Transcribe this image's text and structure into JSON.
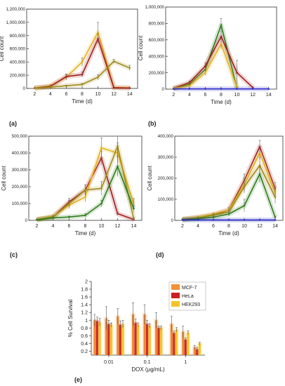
{
  "chart_data": [
    {
      "type": "line",
      "panel_label": "(a)",
      "xlabel": "Time (d)",
      "ylabel": "Cell count",
      "x": [
        2,
        4,
        6,
        8,
        10,
        12,
        14
      ],
      "xticks": [
        "2",
        "4",
        "6",
        "8",
        "10",
        "12",
        "14"
      ],
      "yticks": [
        "0",
        "200,000",
        "400,000",
        "600,000",
        "800,000",
        "1,000,000",
        "1,200,000"
      ],
      "ylim": [
        0,
        1200000
      ],
      "series": [
        {
          "color": "#e3b21e",
          "values": [
            5000,
            40000,
            170000,
            400000,
            850000,
            15000,
            10000
          ],
          "err": [
            3000,
            15000,
            40000,
            60000,
            150000,
            5000,
            5000
          ]
        },
        {
          "color": "#a11d1d",
          "values": [
            5000,
            30000,
            180000,
            210000,
            750000,
            10000,
            5000
          ],
          "err": [
            3000,
            10000,
            40000,
            40000,
            80000,
            5000,
            3000
          ]
        },
        {
          "color": "#a08a19",
          "values": [
            5000,
            20000,
            40000,
            60000,
            170000,
            410000,
            310000
          ],
          "err": [
            3000,
            5000,
            10000,
            15000,
            40000,
            30000,
            40000
          ]
        }
      ]
    },
    {
      "type": "line",
      "panel_label": "(b)",
      "xlabel": "Time (d)",
      "ylabel": "Cell count",
      "x": [
        2,
        4,
        6,
        8,
        10,
        12,
        14
      ],
      "xticks": [
        "2",
        "4",
        "6",
        "8",
        "10",
        "12",
        "14"
      ],
      "yticks": [
        "0",
        "200,000",
        "400,000",
        "600,000",
        "800,000",
        "1,000,000"
      ],
      "ylim": [
        0,
        1000000
      ],
      "series": [
        {
          "color": "#2e7d1a",
          "values": [
            10000,
            60000,
            240000,
            780000,
            10000,
            null,
            null
          ],
          "err": [
            3000,
            20000,
            40000,
            80000,
            5000,
            null,
            null
          ]
        },
        {
          "color": "#a11d1d",
          "values": [
            10000,
            80000,
            280000,
            640000,
            200000,
            20000,
            null
          ],
          "err": [
            3000,
            20000,
            40000,
            60000,
            150000,
            5000,
            null
          ]
        },
        {
          "color": "#e3b21e",
          "values": [
            10000,
            40000,
            200000,
            550000,
            20000,
            null,
            null
          ],
          "err": [
            3000,
            10000,
            30000,
            60000,
            5000,
            null,
            null
          ]
        },
        {
          "color": "#2a2ac8",
          "values": [
            2000,
            3000,
            3000,
            3000,
            3000,
            3000,
            3000
          ],
          "err": [
            0,
            0,
            0,
            0,
            0,
            0,
            0
          ]
        }
      ]
    },
    {
      "type": "line",
      "panel_label": "(c)",
      "xlabel": "Time (d)",
      "ylabel": "Cell count",
      "x": [
        2,
        4,
        6,
        8,
        10,
        12,
        14
      ],
      "xticks": [
        "2",
        "4",
        "6",
        "8",
        "10",
        "12",
        "14"
      ],
      "yticks": [
        "0",
        "100,000",
        "200,000",
        "300,000",
        "400,000",
        "500,000"
      ],
      "ylim": [
        0,
        500000
      ],
      "series": [
        {
          "color": "#a11d1d",
          "values": [
            5000,
            20000,
            110000,
            180000,
            370000,
            40000,
            5000
          ],
          "err": [
            2000,
            5000,
            20000,
            30000,
            40000,
            10000,
            3000
          ]
        },
        {
          "color": "#e3b21e",
          "values": [
            5000,
            25000,
            90000,
            140000,
            430000,
            400000,
            100000
          ],
          "err": [
            2000,
            5000,
            20000,
            30000,
            60000,
            60000,
            30000
          ]
        },
        {
          "color": "#a08a19",
          "values": [
            5000,
            20000,
            100000,
            180000,
            190000,
            440000,
            10000
          ],
          "err": [
            2000,
            5000,
            20000,
            30000,
            40000,
            60000,
            5000
          ]
        },
        {
          "color": "#2e7d1a",
          "values": [
            3000,
            15000,
            20000,
            30000,
            100000,
            320000,
            70000
          ],
          "err": [
            1000,
            3000,
            5000,
            10000,
            20000,
            60000,
            20000
          ]
        }
      ]
    },
    {
      "type": "line",
      "panel_label": "(d)",
      "xlabel": "Time (d)",
      "ylabel": "Cell count",
      "x": [
        2,
        4,
        6,
        8,
        10,
        12,
        14
      ],
      "xticks": [
        "2",
        "4",
        "6",
        "8",
        "10",
        "12",
        "14"
      ],
      "yticks": [
        "0",
        "100,000",
        "200,000",
        "300,000",
        "400,000"
      ],
      "ylim": [
        0,
        400000
      ],
      "series": [
        {
          "color": "#a11d1d",
          "values": [
            5000,
            15000,
            25000,
            50000,
            190000,
            350000,
            150000
          ],
          "err": [
            2000,
            3000,
            5000,
            10000,
            30000,
            30000,
            30000
          ]
        },
        {
          "color": "#e3b21e",
          "values": [
            5000,
            15000,
            30000,
            50000,
            170000,
            320000,
            130000
          ],
          "err": [
            2000,
            3000,
            5000,
            10000,
            30000,
            30000,
            30000
          ]
        },
        {
          "color": "#a08a19",
          "values": [
            5000,
            10000,
            25000,
            40000,
            160000,
            260000,
            110000
          ],
          "err": [
            2000,
            3000,
            5000,
            10000,
            30000,
            40000,
            30000
          ]
        },
        {
          "color": "#2e7d1a",
          "values": [
            3000,
            8000,
            15000,
            30000,
            70000,
            220000,
            15000
          ],
          "err": [
            1000,
            2000,
            5000,
            10000,
            30000,
            40000,
            5000
          ]
        },
        {
          "color": "#2a2ac8",
          "values": [
            2000,
            2000,
            2000,
            2000,
            2000,
            2000,
            2000
          ],
          "err": [
            0,
            0,
            0,
            0,
            0,
            0,
            0
          ]
        }
      ]
    },
    {
      "type": "bar",
      "panel_label": "(e)",
      "xlabel": "DOX (μg/mL)",
      "ylabel": "% Cell Survival",
      "xscale": "log",
      "xticks": [
        "0.01",
        "0.1",
        "1"
      ],
      "xtick_values": [
        0.01,
        0.1,
        1
      ],
      "yticks": [
        "0.2",
        "0.4",
        "0.6",
        "0.8",
        "1",
        "1.2",
        "1.4",
        "1.6",
        "1.8",
        "2"
      ],
      "ylim": [
        0.1,
        2.0
      ],
      "legend": "top-right",
      "doses": [
        0.005,
        0.01,
        0.02,
        0.05,
        0.1,
        0.2,
        0.5,
        1,
        2
      ],
      "series": [
        {
          "name": "MCF-7",
          "color": "#f0923a",
          "values": [
            1.0,
            1.05,
            1.1,
            1.15,
            1.15,
            1.0,
            0.9,
            0.7,
            0.3
          ],
          "err": [
            0.15,
            0.3,
            0.2,
            0.3,
            0.25,
            0.2,
            0.2,
            0.15,
            0.05
          ]
        },
        {
          "name": "HeLa",
          "color": "#cc1f1f",
          "values": [
            0.98,
            0.9,
            0.88,
            0.93,
            0.9,
            0.8,
            0.67,
            0.5,
            0.25
          ],
          "err": [
            0.1,
            0.1,
            0.1,
            0.1,
            0.1,
            0.05,
            0.05,
            0.05,
            0.05
          ]
        },
        {
          "name": "HEK293",
          "color": "#f2c429",
          "values": [
            0.95,
            0.88,
            0.9,
            0.88,
            0.86,
            0.8,
            0.76,
            0.68,
            0.4
          ],
          "err": [
            0.1,
            0.05,
            0.1,
            0.05,
            0.05,
            0.05,
            0.05,
            0.05,
            0.03
          ]
        }
      ]
    }
  ]
}
